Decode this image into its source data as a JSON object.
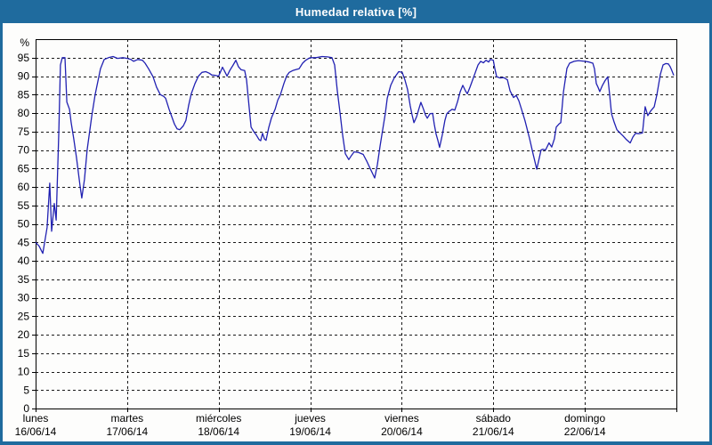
{
  "window": {
    "title": "Humedad relativa [%]",
    "title_bar_color": "#1f6b9e",
    "border_color": "#1f6b9e",
    "content_background": "#fdfdfc"
  },
  "chart_data": {
    "type": "line",
    "title": "Humedad relativa [%]",
    "ylabel": "%",
    "y_unit_label": "%",
    "ylim": [
      0,
      100
    ],
    "x_hours_total": 168,
    "grid": true,
    "grid_color": "#1a1a1a",
    "frame_color": "#000000",
    "line_color": "#2121b2",
    "text_color": "#000000",
    "y_axis": {
      "ticks": [
        0,
        5,
        10,
        15,
        20,
        25,
        30,
        35,
        40,
        45,
        50,
        55,
        60,
        65,
        70,
        75,
        80,
        85,
        90,
        95
      ]
    },
    "x_axis": {
      "days": [
        {
          "name": "lunes",
          "date": "16/06/14"
        },
        {
          "name": "martes",
          "date": "17/06/14"
        },
        {
          "name": "miércoles",
          "date": "18/06/14"
        },
        {
          "name": "jueves",
          "date": "19/06/14"
        },
        {
          "name": "viernes",
          "date": "20/06/14"
        },
        {
          "name": "sábado",
          "date": "21/06/14"
        },
        {
          "name": "domingo",
          "date": "22/06/14"
        }
      ]
    },
    "series": [
      {
        "name": "Humedad relativa",
        "points": [
          [
            0,
            45
          ],
          [
            0.9,
            44
          ],
          [
            1.9,
            42
          ],
          [
            3,
            49
          ],
          [
            3.7,
            61
          ],
          [
            4.2,
            48
          ],
          [
            4.9,
            55.5
          ],
          [
            5.4,
            51
          ],
          [
            6.1,
            75
          ],
          [
            6.5,
            93
          ],
          [
            7,
            95
          ],
          [
            7.7,
            95
          ],
          [
            8.2,
            83
          ],
          [
            8.9,
            81
          ],
          [
            9.3,
            77.5
          ],
          [
            10,
            73
          ],
          [
            10.7,
            68
          ],
          [
            11.7,
            60
          ],
          [
            12.1,
            57
          ],
          [
            12.8,
            62
          ],
          [
            13.5,
            70
          ],
          [
            14.7,
            79
          ],
          [
            15.6,
            85
          ],
          [
            17,
            92
          ],
          [
            18,
            94.5
          ],
          [
            19.1,
            95
          ],
          [
            20.3,
            95.3
          ],
          [
            21.5,
            94.8
          ],
          [
            22.9,
            95
          ],
          [
            24,
            94.8
          ],
          [
            25,
            94.5
          ],
          [
            25.7,
            94
          ],
          [
            26.8,
            94.5
          ],
          [
            28,
            94.3
          ],
          [
            28.7,
            93.5
          ],
          [
            29.6,
            92
          ],
          [
            30.8,
            89.8
          ],
          [
            31.7,
            87
          ],
          [
            32.7,
            85
          ],
          [
            33.6,
            84.5
          ],
          [
            34.1,
            84
          ],
          [
            35,
            81
          ],
          [
            35.7,
            79
          ],
          [
            36.4,
            77
          ],
          [
            37.1,
            75.7
          ],
          [
            37.8,
            75.5
          ],
          [
            38.7,
            76.5
          ],
          [
            39.4,
            78
          ],
          [
            40.1,
            82
          ],
          [
            40.8,
            85.2
          ],
          [
            41.8,
            88
          ],
          [
            42.7,
            90
          ],
          [
            43.6,
            91
          ],
          [
            44.6,
            91.2
          ],
          [
            45.5,
            90.8
          ],
          [
            46.2,
            90.3
          ],
          [
            47.1,
            90.2
          ],
          [
            48,
            90
          ],
          [
            49,
            92.4
          ],
          [
            49.7,
            91
          ],
          [
            50.2,
            90
          ],
          [
            50.9,
            91.5
          ],
          [
            51.8,
            93
          ],
          [
            52.5,
            94.3
          ],
          [
            53.2,
            92.5
          ],
          [
            53.9,
            91.7
          ],
          [
            54.8,
            91.5
          ],
          [
            55.3,
            89
          ],
          [
            56,
            81.4
          ],
          [
            56.5,
            76.2
          ],
          [
            57.2,
            75
          ],
          [
            57.9,
            74
          ],
          [
            58.6,
            72.8
          ],
          [
            59,
            72.5
          ],
          [
            59.5,
            74.5
          ],
          [
            60,
            73
          ],
          [
            60.4,
            72.6
          ],
          [
            61.1,
            76
          ],
          [
            61.8,
            78.6
          ],
          [
            62.8,
            81
          ],
          [
            63.5,
            83.5
          ],
          [
            64.2,
            85
          ],
          [
            65.1,
            88
          ],
          [
            65.8,
            90
          ],
          [
            66.5,
            91
          ],
          [
            67.4,
            91.5
          ],
          [
            68.4,
            91.8
          ],
          [
            69.1,
            92
          ],
          [
            70,
            93.5
          ],
          [
            70.7,
            94.2
          ],
          [
            71.6,
            94.8
          ],
          [
            72,
            95
          ],
          [
            73.5,
            95
          ],
          [
            75.1,
            95.3
          ],
          [
            76.5,
            95.2
          ],
          [
            77.7,
            95
          ],
          [
            78.4,
            93
          ],
          [
            79.1,
            86
          ],
          [
            79.8,
            80.2
          ],
          [
            80.5,
            74
          ],
          [
            81.2,
            69
          ],
          [
            82.1,
            67.4
          ],
          [
            82.8,
            68.5
          ],
          [
            83.5,
            69.5
          ],
          [
            84.7,
            69.3
          ],
          [
            85.9,
            68.8
          ],
          [
            86.8,
            67
          ],
          [
            87.7,
            65
          ],
          [
            88.4,
            63.5
          ],
          [
            88.9,
            62.4
          ],
          [
            89.6,
            66
          ],
          [
            90.3,
            71
          ],
          [
            91,
            75.5
          ],
          [
            91.7,
            80
          ],
          [
            92.2,
            84
          ],
          [
            93.1,
            87.5
          ],
          [
            94,
            89.5
          ],
          [
            95.2,
            91.2
          ],
          [
            96.1,
            91
          ],
          [
            96.8,
            89
          ],
          [
            97.5,
            86.4
          ],
          [
            98.2,
            82
          ],
          [
            98.7,
            79.5
          ],
          [
            99.2,
            77.4
          ],
          [
            99.9,
            79
          ],
          [
            100.6,
            81.5
          ],
          [
            101,
            82.9
          ],
          [
            101.7,
            81
          ],
          [
            102.2,
            79.5
          ],
          [
            102.7,
            78.6
          ],
          [
            103.4,
            79.8
          ],
          [
            104.1,
            79.9
          ],
          [
            104.5,
            77
          ],
          [
            105,
            74.3
          ],
          [
            105.5,
            72.5
          ],
          [
            105.9,
            70.7
          ],
          [
            106.6,
            74
          ],
          [
            107.3,
            78
          ],
          [
            107.8,
            79.8
          ],
          [
            108.5,
            80.5
          ],
          [
            109.2,
            81
          ],
          [
            109.9,
            80.8
          ],
          [
            110.6,
            83
          ],
          [
            111.3,
            85.7
          ],
          [
            112,
            87.5
          ],
          [
            112.7,
            86
          ],
          [
            113.2,
            85.2
          ],
          [
            113.9,
            87
          ],
          [
            114.6,
            89
          ],
          [
            115.3,
            91
          ],
          [
            116,
            93
          ],
          [
            116.7,
            94
          ],
          [
            117.4,
            93.6
          ],
          [
            118.1,
            94.3
          ],
          [
            118.8,
            93.8
          ],
          [
            119.2,
            94.5
          ],
          [
            120,
            94.3
          ],
          [
            120.4,
            92
          ],
          [
            120.9,
            89.8
          ],
          [
            121.8,
            89.5
          ],
          [
            122.7,
            89.6
          ],
          [
            123.7,
            89
          ],
          [
            124.4,
            86
          ],
          [
            125.3,
            84.2
          ],
          [
            126,
            84.8
          ],
          [
            126.7,
            83.3
          ],
          [
            127.4,
            81
          ],
          [
            128.3,
            77.9
          ],
          [
            129.5,
            73.1
          ],
          [
            130.4,
            69
          ],
          [
            131.4,
            64.8
          ],
          [
            132.1,
            68
          ],
          [
            132.5,
            70
          ],
          [
            133,
            70.2
          ],
          [
            133.7,
            70
          ],
          [
            134.6,
            71.9
          ],
          [
            135.3,
            70.8
          ],
          [
            136,
            73
          ],
          [
            136.5,
            76.2
          ],
          [
            137.2,
            77
          ],
          [
            137.7,
            77.4
          ],
          [
            138.4,
            85.7
          ],
          [
            139.3,
            92.1
          ],
          [
            140,
            93.5
          ],
          [
            141.2,
            94
          ],
          [
            142.3,
            94.2
          ],
          [
            144,
            94
          ],
          [
            145.1,
            93.8
          ],
          [
            146.1,
            93.5
          ],
          [
            146.5,
            92
          ],
          [
            147,
            88
          ],
          [
            147.5,
            86.9
          ],
          [
            147.9,
            85.8
          ],
          [
            148.6,
            87.5
          ],
          [
            149.3,
            88.8
          ],
          [
            150,
            89.8
          ],
          [
            150.5,
            85
          ],
          [
            151,
            79.8
          ],
          [
            151.7,
            77.5
          ],
          [
            152.4,
            75.5
          ],
          [
            153.3,
            74.5
          ],
          [
            154,
            73.8
          ],
          [
            154.9,
            72.8
          ],
          [
            155.9,
            71.9
          ],
          [
            156.6,
            73.5
          ],
          [
            157.3,
            74.5
          ],
          [
            158.2,
            74.4
          ],
          [
            159.1,
            74.6
          ],
          [
            159.8,
            81.7
          ],
          [
            160.3,
            80
          ],
          [
            160.5,
            79.3
          ],
          [
            161.2,
            80.5
          ],
          [
            162.2,
            81.7
          ],
          [
            162.9,
            85
          ],
          [
            163.8,
            90.5
          ],
          [
            164.5,
            93
          ],
          [
            165.2,
            93.4
          ],
          [
            165.9,
            93.3
          ],
          [
            166.4,
            92.5
          ],
          [
            166.8,
            91.5
          ],
          [
            167.3,
            90.2
          ]
        ]
      }
    ]
  }
}
